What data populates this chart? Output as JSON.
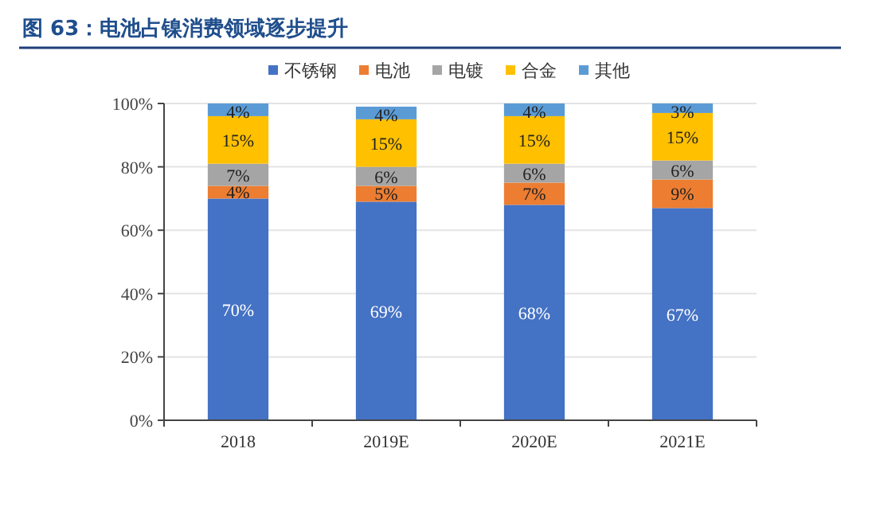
{
  "chart_data": {
    "type": "bar",
    "stacked": true,
    "title": "图 63：电池占镍消费领域逐步提升",
    "categories": [
      "2018",
      "2019E",
      "2020E",
      "2021E"
    ],
    "series": [
      {
        "name": "不锈钢",
        "color": "#4472c4",
        "values": [
          70,
          69,
          68,
          67
        ],
        "value_labels": [
          "70%",
          "69%",
          "68%",
          "67%"
        ]
      },
      {
        "name": "电池",
        "color": "#ed7d31",
        "values": [
          4,
          5,
          7,
          9
        ],
        "value_labels": [
          "4%",
          "5%",
          "7%",
          "9%"
        ]
      },
      {
        "name": "电镀",
        "color": "#a5a5a5",
        "values": [
          7,
          6,
          6,
          6
        ],
        "value_labels": [
          "7%",
          "6%",
          "6%",
          "6%"
        ]
      },
      {
        "name": "合金",
        "color": "#ffc000",
        "values": [
          15,
          15,
          15,
          15
        ],
        "value_labels": [
          "15%",
          "15%",
          "15%",
          "15%"
        ]
      },
      {
        "name": "其他",
        "color": "#5b9bd5",
        "values": [
          4,
          4,
          4,
          3
        ],
        "value_labels": [
          "4%",
          "4%",
          "4%",
          "3%"
        ]
      }
    ],
    "ylim": [
      0,
      100
    ],
    "yticks": [
      {
        "value": 0,
        "label": "0%"
      },
      {
        "value": 20,
        "label": "20%"
      },
      {
        "value": 40,
        "label": "40%"
      },
      {
        "value": 60,
        "label": "60%"
      },
      {
        "value": 80,
        "label": "80%"
      },
      {
        "value": 100,
        "label": "100%"
      }
    ],
    "grid": "y",
    "legend": "top"
  }
}
